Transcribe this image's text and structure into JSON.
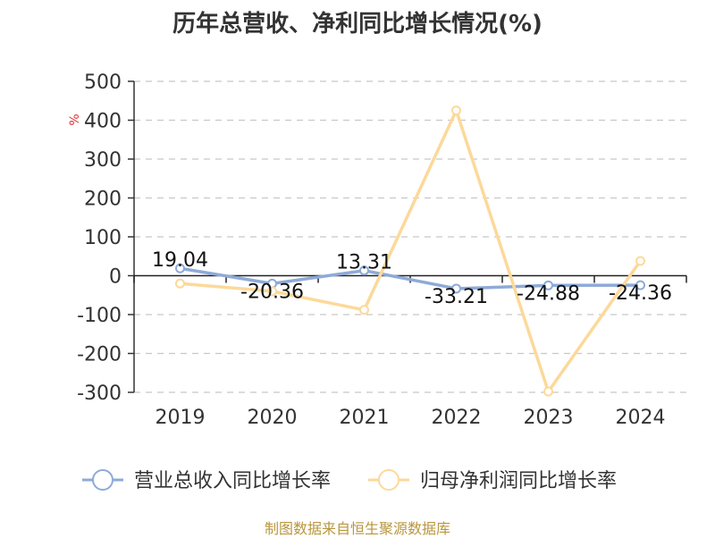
{
  "title": "历年总营收、净利同比增长情况(%)",
  "source": "制图数据来自恒生聚源数据库",
  "chart_data": {
    "type": "line",
    "title": "历年总营收、净利同比增长情况(%)",
    "ylabel": "%",
    "categories": [
      "2019",
      "2020",
      "2021",
      "2022",
      "2023",
      "2024"
    ],
    "ylim": [
      -300,
      500
    ],
    "yticks": [
      "500",
      "400",
      "300",
      "200",
      "100",
      "0",
      "-100",
      "-200",
      "-300"
    ],
    "grid": true,
    "legend_position": "bottom",
    "series": [
      {
        "name": "营业总收入同比增长率",
        "values": [
          19.04,
          -20.36,
          13.31,
          -33.21,
          -24.88,
          -24.36
        ],
        "labels": [
          "19.04",
          "-20.36",
          "13.31",
          "-33.21",
          "-24.88",
          "-24.36"
        ],
        "color": "#8eaad8"
      },
      {
        "name": "归母净利润同比增长率",
        "values": [
          -20,
          -40,
          -88,
          425,
          -298,
          38
        ],
        "color": "#fcd99a"
      }
    ]
  }
}
